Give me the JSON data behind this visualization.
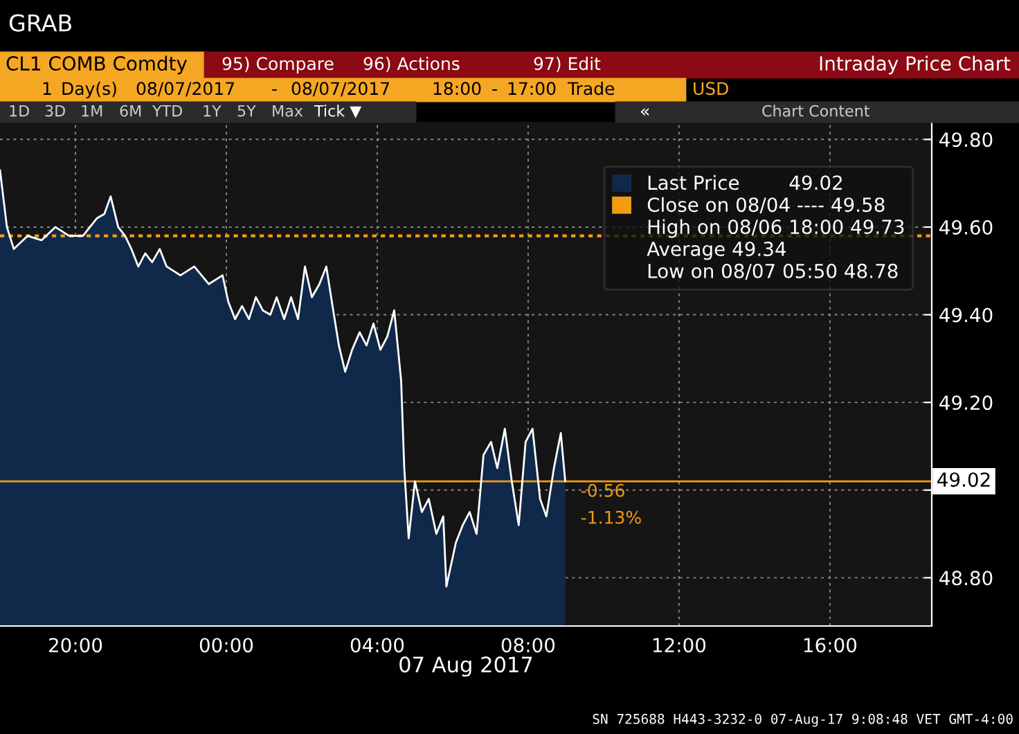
{
  "chart_data": {
    "type": "area",
    "title": "CL1 COMB Comdty",
    "subtitle": "Intraday Price Chart",
    "xlabel": "07 Aug 2017",
    "x": [
      "2017-08-06T18:00",
      "2017-08-06T18:11",
      "2017-08-06T18:22",
      "2017-08-06T18:44",
      "2017-08-06T19:06",
      "2017-08-06T19:28",
      "2017-08-06T19:50",
      "2017-08-06T20:12",
      "2017-08-06T20:23",
      "2017-08-06T20:34",
      "2017-08-06T20:46",
      "2017-08-06T20:56",
      "2017-08-06T21:08",
      "2017-08-06T21:19",
      "2017-08-06T21:29",
      "2017-08-06T21:40",
      "2017-08-06T21:51",
      "2017-08-06T22:02",
      "2017-08-06T22:14",
      "2017-08-06T22:25",
      "2017-08-06T22:47",
      "2017-08-06T23:09",
      "2017-08-06T23:32",
      "2017-08-06T23:54",
      "2017-08-07T00:03",
      "2017-08-07T00:14",
      "2017-08-07T00:25",
      "2017-08-07T00:36",
      "2017-08-07T00:47",
      "2017-08-07T00:58",
      "2017-08-07T01:10",
      "2017-08-07T01:20",
      "2017-08-07T01:32",
      "2017-08-07T01:43",
      "2017-08-07T01:54",
      "2017-08-07T02:05",
      "2017-08-07T02:16",
      "2017-08-07T02:28",
      "2017-08-07T02:39",
      "2017-08-07T02:50",
      "2017-08-07T02:59",
      "2017-08-07T03:09",
      "2017-08-07T03:20",
      "2017-08-07T03:32",
      "2017-08-07T03:43",
      "2017-08-07T03:54",
      "2017-08-07T04:05",
      "2017-08-07T04:16",
      "2017-08-07T04:27",
      "2017-08-07T04:38",
      "2017-08-07T04:43",
      "2017-08-07T04:50",
      "2017-08-07T05:00",
      "2017-08-07T05:11",
      "2017-08-07T05:22",
      "2017-08-07T05:34",
      "2017-08-07T05:45",
      "2017-08-07T05:50",
      "2017-08-07T06:05",
      "2017-08-07T06:16",
      "2017-08-07T06:27",
      "2017-08-07T06:38",
      "2017-08-07T06:49",
      "2017-08-07T07:01",
      "2017-08-07T07:11",
      "2017-08-07T07:23",
      "2017-08-07T07:34",
      "2017-08-07T07:45",
      "2017-08-07T07:56",
      "2017-08-07T08:07",
      "2017-08-07T08:19",
      "2017-08-07T08:29",
      "2017-08-07T08:41",
      "2017-08-07T08:52",
      "2017-08-07T08:59"
    ],
    "series": [
      {
        "name": "Last Price",
        "color": "#10294b",
        "values": [
          49.73,
          49.6,
          49.55,
          49.58,
          49.57,
          49.6,
          49.58,
          49.58,
          49.6,
          49.62,
          49.63,
          49.67,
          49.6,
          49.58,
          49.55,
          49.51,
          49.54,
          49.52,
          49.55,
          49.51,
          49.49,
          49.51,
          49.47,
          49.49,
          49.43,
          49.39,
          49.42,
          49.39,
          49.44,
          49.41,
          49.4,
          49.44,
          49.39,
          49.44,
          49.39,
          49.51,
          49.44,
          49.47,
          49.51,
          49.41,
          49.33,
          49.27,
          49.32,
          49.36,
          49.33,
          49.38,
          49.32,
          49.35,
          49.41,
          49.25,
          49.05,
          48.89,
          49.02,
          48.95,
          48.98,
          48.9,
          48.94,
          48.78,
          48.88,
          48.92,
          48.95,
          48.9,
          49.08,
          49.11,
          49.05,
          49.14,
          49.02,
          48.92,
          49.11,
          49.14,
          48.98,
          48.94,
          49.05,
          49.13,
          49.02
        ]
      }
    ],
    "xlim": [
      "2017-08-06T18:00",
      "2017-08-07T18:42"
    ],
    "ylim": [
      48.69,
      49.84
    ],
    "xticks": [
      {
        "value": "2017-08-06T20:00",
        "label": "20:00"
      },
      {
        "value": "2017-08-07T00:00",
        "label": "00:00"
      },
      {
        "value": "2017-08-07T04:00",
        "label": "04:00"
      },
      {
        "value": "2017-08-07T08:00",
        "label": "08:00"
      },
      {
        "value": "2017-08-07T12:00",
        "label": "12:00"
      },
      {
        "value": "2017-08-07T16:00",
        "label": "16:00"
      }
    ],
    "yticks": [
      {
        "value": 48.8,
        "label": "48.80"
      },
      {
        "value": 49.0,
        "label": null
      },
      {
        "value": 49.2,
        "label": "49.20"
      },
      {
        "value": 49.4,
        "label": "49.40"
      },
      {
        "value": 49.6,
        "label": "49.60"
      },
      {
        "value": 49.8,
        "label": "49.80"
      }
    ],
    "ref_lines": [
      {
        "axis": "y",
        "value": 49.58,
        "label": "Close on 08/04 ---- 49.58",
        "color": "#f39c12",
        "line_style": "dotted"
      },
      {
        "axis": "y",
        "value": 49.02,
        "label": "49.02",
        "color": "#f39c12",
        "line_style": "solid"
      }
    ],
    "grid": true,
    "legend": "top right",
    "annotations": [
      "GRAB",
      "95) Compare",
      "96) Actions",
      "97) Edit",
      "1",
      "Day(s)",
      "08/07/2017",
      "-",
      "08/07/2017",
      "18:00",
      "-",
      "17:00",
      "Trade",
      "USD",
      "1D",
      "3D",
      "1M",
      "6M",
      "YTD",
      "1Y",
      "5Y",
      "Max",
      "Tick ▼",
      "«",
      "Chart Content",
      "-0.56",
      "-1.13%",
      "High on 08/06 18:00 49.73",
      "Average 49.34",
      "Low on 08/07 05:50 48.78",
      "SN 725688 H443-3232-0 07-Aug-17 9:08:48 VET GMT-4:00"
    ]
  }
}
